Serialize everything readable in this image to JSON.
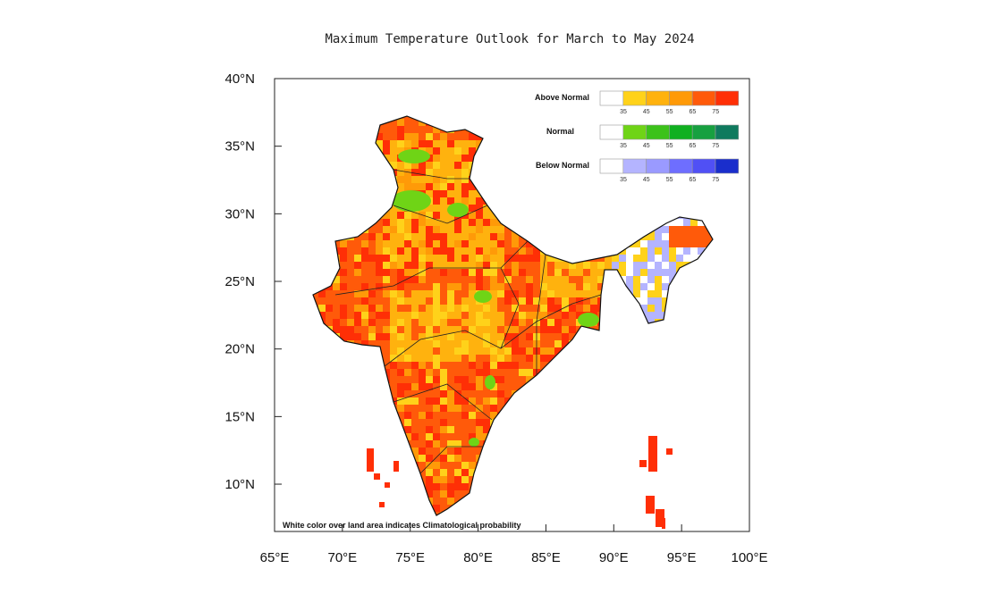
{
  "title": "Maximum Temperature Outlook for March to May 2024",
  "map": {
    "lon_range": [
      65,
      100
    ],
    "lat_range": [
      6.5,
      40
    ],
    "x_ticks": [
      "65°E",
      "70°E",
      "75°E",
      "80°E",
      "85°E",
      "90°E",
      "95°E",
      "100°E"
    ],
    "y_ticks": [
      "40°N",
      "35°N",
      "30°N",
      "25°N",
      "20°N",
      "15°N",
      "10°N"
    ],
    "dominant_category": "Above Normal",
    "note": "White color over land area indicates Climatological probability"
  },
  "legend": [
    {
      "label": "Above Normal",
      "colors": [
        "#ffffff",
        "#ffd21a",
        "#ffb20e",
        "#ff9a08",
        "#ff5a0a",
        "#ff2f06"
      ],
      "ticks": [
        "35",
        "45",
        "55",
        "65",
        "75"
      ]
    },
    {
      "label": "Normal",
      "colors": [
        "#ffffff",
        "#6fd416",
        "#3cc21a",
        "#10b020",
        "#17a040",
        "#0f7a5e"
      ],
      "ticks": [
        "35",
        "45",
        "55",
        "65",
        "75"
      ]
    },
    {
      "label": "Below Normal",
      "colors": [
        "#ffffff",
        "#b4b4ff",
        "#9a9aff",
        "#6e6eff",
        "#5050f5",
        "#1a2ecc"
      ],
      "ticks": [
        "35",
        "45",
        "55",
        "65",
        "75"
      ]
    }
  ]
}
